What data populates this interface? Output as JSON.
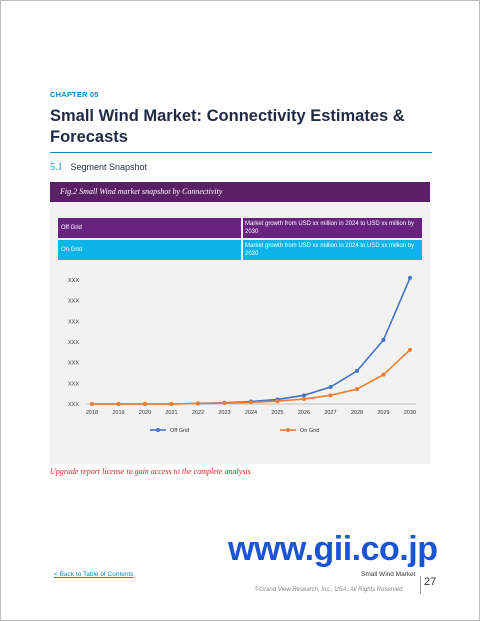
{
  "document": {
    "chapter": "CHAPTER 05",
    "title": "Small Wind Market: Connectivity Estimates & Forecasts",
    "section_number": "5.1",
    "section_title": "Segment Snapshot"
  },
  "figure": {
    "title": "Fig.2 Small Wind market snapshot by Connectivity",
    "segments": [
      {
        "label": "Off Grid",
        "description": "Market growth from USD xx million in 2024 to USD xx million by 2030",
        "color": "#6a2280"
      },
      {
        "label": "On Grid",
        "description": "Market growth from USD xx million in 2024 to USD xx million by 2030",
        "color": "#0db4e8"
      }
    ]
  },
  "chart_data": {
    "type": "line",
    "x": [
      "2018",
      "2019",
      "2020",
      "2021",
      "2022",
      "2023",
      "2024",
      "2025",
      "2026",
      "2027",
      "2028",
      "2029",
      "2030"
    ],
    "y_tick_labels": [
      "XXX",
      "XXX",
      "XXX",
      "XXX",
      "XXX",
      "XXX",
      "XXX"
    ],
    "ylim": [
      0,
      6
    ],
    "grid": false,
    "legend_position": "bottom",
    "series": [
      {
        "name": "Off Grid",
        "color": "#4472c4",
        "values": [
          0.0,
          0.0,
          0.0,
          0.0,
          0.03,
          0.06,
          0.12,
          0.22,
          0.42,
          0.82,
          1.6,
          3.1,
          6.1
        ]
      },
      {
        "name": "On Grid",
        "color": "#ed7d31",
        "values": [
          0.0,
          0.0,
          0.0,
          0.0,
          0.02,
          0.04,
          0.08,
          0.14,
          0.24,
          0.42,
          0.72,
          1.42,
          2.62
        ]
      }
    ]
  },
  "cta": "Upgrade report license to gain access to the complete analysis",
  "watermark": "www.gii.co.jp",
  "footer": {
    "back_link": "< Back to Table of Contents",
    "report_title": "Small Wind Market",
    "copyright": "©Grand View Research, Inc., USA. All Rights Reserved",
    "page_number": "27"
  }
}
